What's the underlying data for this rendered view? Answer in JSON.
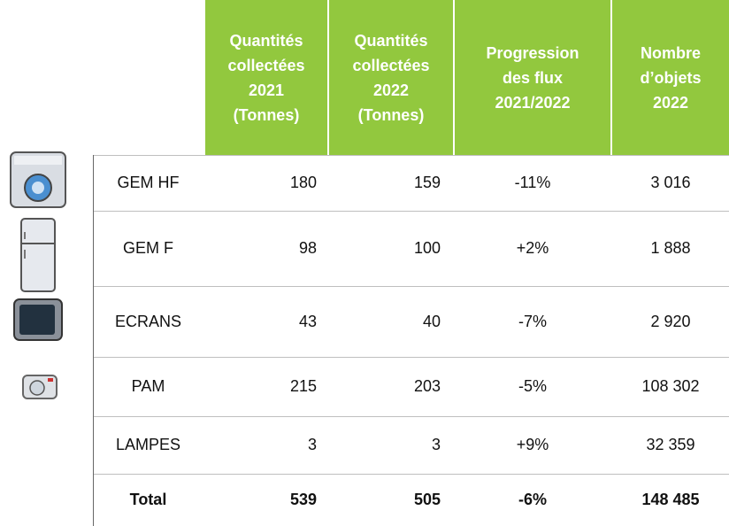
{
  "table": {
    "headers": [
      [
        "Quantités",
        "collectées",
        "2021",
        "(Tonnes)"
      ],
      [
        "Quantités",
        "collectées",
        "2022",
        "(Tonnes)"
      ],
      [
        "Progression",
        "des flux",
        "2021/2022"
      ],
      [
        "Nombre",
        "d’objets",
        "2022"
      ]
    ],
    "rows": [
      [
        "GEM HF",
        "180",
        "159",
        "-11%",
        "3 016"
      ],
      [
        "GEM F",
        "98",
        "100",
        "+2%",
        "1 888"
      ],
      [
        "ECRANS",
        "43",
        "40",
        "-7%",
        "2 920"
      ],
      [
        "PAM",
        "215",
        "203",
        "-5%",
        "108 302"
      ],
      [
        "LAMPES",
        "3",
        "3",
        "+9%",
        "32 359"
      ],
      [
        "Total",
        "539",
        "505",
        "-6%",
        "148 485"
      ]
    ]
  }
}
